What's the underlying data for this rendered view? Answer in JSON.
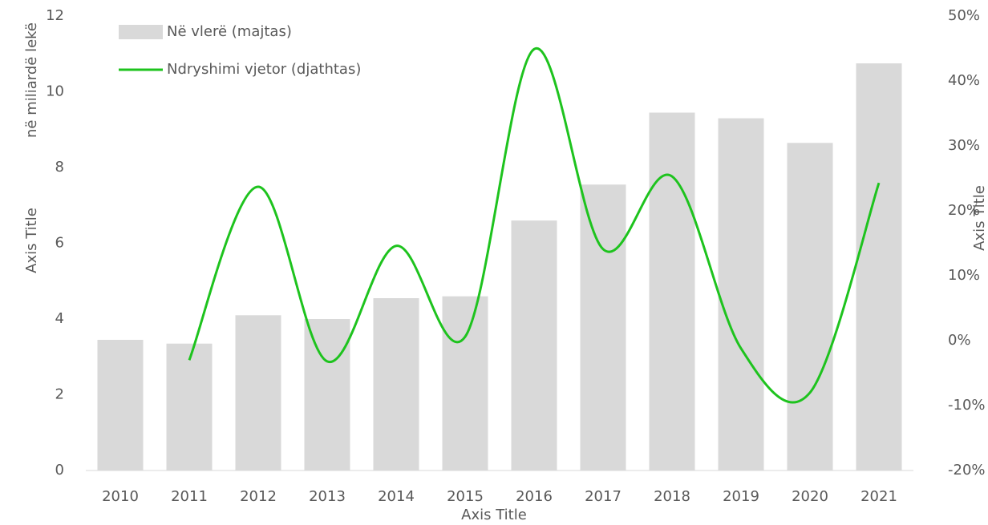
{
  "chart_data": {
    "type": "bar_line",
    "categories": [
      "2010",
      "2011",
      "2012",
      "2013",
      "2014",
      "2015",
      "2016",
      "2017",
      "2018",
      "2019",
      "2020",
      "2021"
    ],
    "series": [
      {
        "name": "Në vlerë (majtas)",
        "color": "#d9d9d9",
        "type": "bar",
        "values": [
          3.45,
          3.35,
          4.1,
          4.0,
          4.55,
          4.6,
          6.6,
          7.55,
          9.45,
          9.3,
          8.65,
          10.75
        ]
      },
      {
        "name": "Ndryshimi vjetor (djathtas)",
        "color": "#1ec31e",
        "type": "line",
        "axis": "y2",
        "values": [
          null,
          -3.0,
          23.7,
          -3.2,
          14.6,
          0.6,
          44.9,
          14.1,
          25.3,
          -1.2,
          -8.0,
          24.3
        ]
      }
    ],
    "ylim": [
      0,
      12
    ],
    "yticks": [
      0,
      2,
      4,
      6,
      8,
      10,
      12
    ],
    "y2lim": [
      -20,
      50
    ],
    "y2ticks": [
      {
        "value": -20,
        "label": "-20%"
      },
      {
        "value": -10,
        "label": "-10%"
      },
      {
        "value": 0,
        "label": "0%"
      },
      {
        "value": 10,
        "label": "10%"
      },
      {
        "value": 20,
        "label": "20%"
      },
      {
        "value": 30,
        "label": "30%"
      },
      {
        "value": 40,
        "label": "40%"
      },
      {
        "value": 50,
        "label": "50%"
      }
    ],
    "ylabel": "Axis Title",
    "ylabel_unit": "në miliardë lekë",
    "y2label": "Axis Title",
    "xlabel": "Axis Title",
    "grid": false
  }
}
